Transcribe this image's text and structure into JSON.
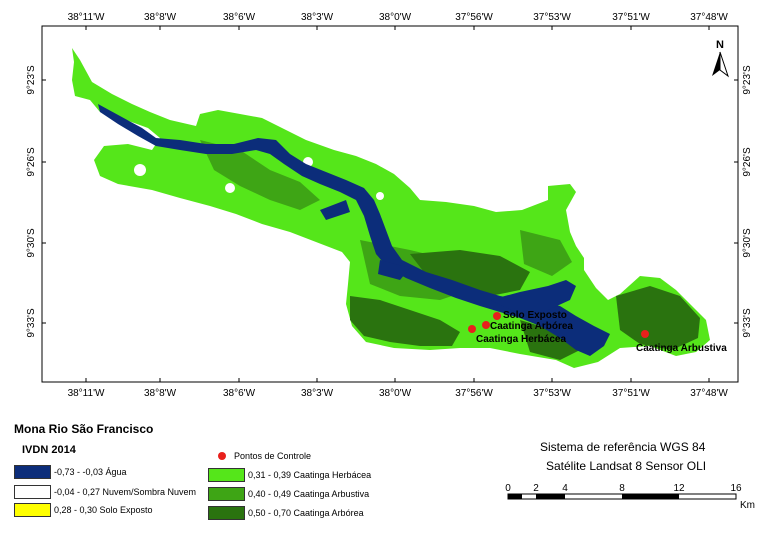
{
  "map": {
    "top_ticks": [
      "38°11'W",
      "38°8'W",
      "38°6'W",
      "38°3'W",
      "38°0'W",
      "37°56'W",
      "37°53'W",
      "37°51'W",
      "37°48'W"
    ],
    "bottom_ticks": [
      "38°11'W",
      "38°8'W",
      "38°6'W",
      "38°3'W",
      "38°0'W",
      "37°56'W",
      "37°53'W",
      "37°51'W",
      "37°48'W"
    ],
    "left_ticks": [
      "9°23'S",
      "9°26'S",
      "9°30'S",
      "9°33'S"
    ],
    "right_ticks": [
      "9°23'S",
      "9°26'S",
      "9°30'S",
      "9°33'S"
    ],
    "north_label": "N",
    "points": [
      {
        "label": "Solo Exposto"
      },
      {
        "label": "Caatinga Arbórea"
      },
      {
        "label": "Caatinga Herbácea"
      },
      {
        "label": "Caatinga Arbustiva"
      }
    ]
  },
  "legend": {
    "title": "Mona Rio São Francisco",
    "subtitle": "IVDN 2014",
    "classes": [
      {
        "label": "-0,73 - -0,03 Água",
        "color": "#0c2d7a"
      },
      {
        "label": "-0,04 - 0,27 Nuvem/Sombra Nuvem",
        "color": "#ffffff"
      },
      {
        "label": "0,28 - 0,30 Solo Exposto",
        "color": "#ffff00"
      },
      {
        "label": "0,31 - 0,39 Caatinga Herbácea",
        "color": "#55e61a"
      },
      {
        "label": "0,40 - 0,49 Caatinga Arbustiva",
        "color": "#3ea515"
      },
      {
        "label": "0,50 - 0,70 Caatinga Arbórea",
        "color": "#2a730f"
      }
    ],
    "control_points": {
      "label": "Pontos de Controle",
      "color": "#e8201c"
    }
  },
  "info": {
    "ref_system": "Sistema de referência WGS 84",
    "satellite": "Satélite Landsat 8 Sensor OLI"
  },
  "scale": {
    "ticks": [
      "0",
      "2",
      "4",
      "8",
      "12",
      "16"
    ],
    "unit": "Km"
  }
}
